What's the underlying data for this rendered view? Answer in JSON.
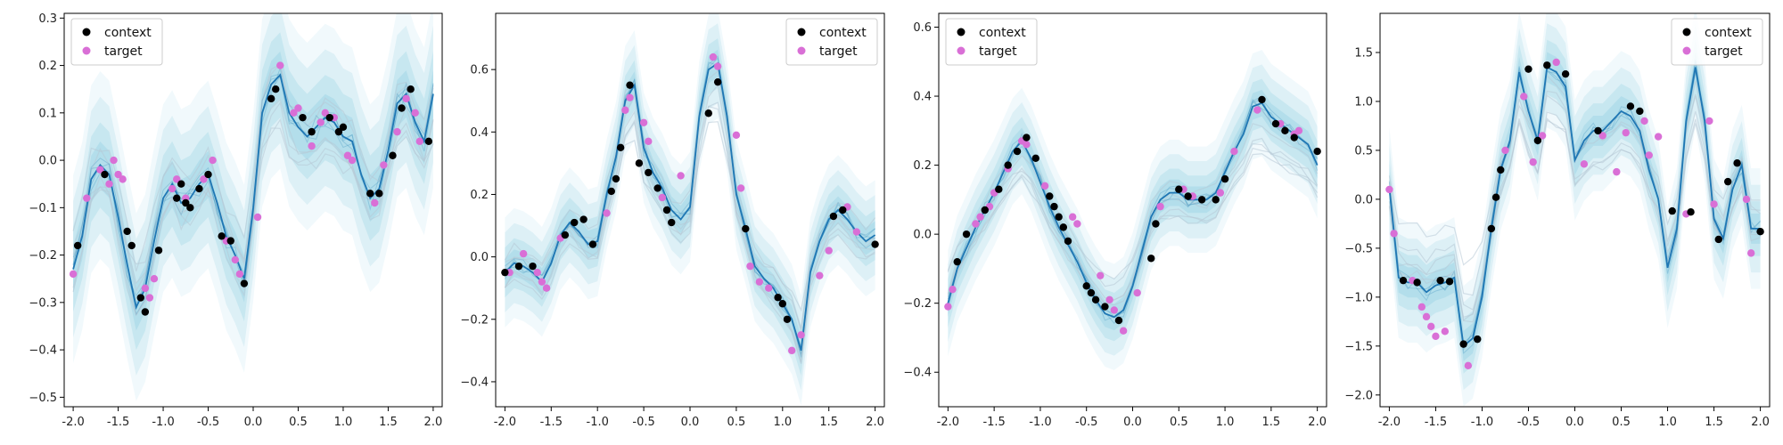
{
  "colors": {
    "context": "#000000",
    "target": "#d96fd6",
    "mean_line": "#1f77b4",
    "band": "#8fcfe3",
    "faint_sample": "#b7c9d6"
  },
  "legend": {
    "context_label": "context",
    "target_label": "target"
  },
  "chart_data": [
    {
      "type": "line",
      "title": "",
      "xlabel": "",
      "ylabel": "",
      "xlim": [
        -2.1,
        2.1
      ],
      "ylim": [
        -0.52,
        0.31
      ],
      "xticks": [
        "-2.0",
        "-1.5",
        "-1.0",
        "-0.5",
        "0.0",
        "0.5",
        "1.0",
        "1.5",
        "2.0"
      ],
      "xtick_values": [
        -2,
        -1.5,
        -1,
        -0.5,
        0,
        0.5,
        1,
        1.5,
        2
      ],
      "yticks": [
        "−0.5",
        "−0.4",
        "−0.3",
        "−0.2",
        "−0.1",
        "0.0",
        "0.1",
        "0.2",
        "0.3"
      ],
      "ytick_values": [
        -0.5,
        -0.4,
        -0.3,
        -0.2,
        -0.1,
        0,
        0.1,
        0.2,
        0.3
      ],
      "legend_position": "upper-left",
      "mean_x": [
        -2.0,
        -1.9,
        -1.8,
        -1.7,
        -1.6,
        -1.5,
        -1.4,
        -1.3,
        -1.2,
        -1.1,
        -1.0,
        -0.9,
        -0.8,
        -0.7,
        -0.6,
        -0.5,
        -0.4,
        -0.3,
        -0.2,
        -0.1,
        0.0,
        0.1,
        0.2,
        0.3,
        0.4,
        0.5,
        0.6,
        0.7,
        0.8,
        0.9,
        1.0,
        1.1,
        1.2,
        1.3,
        1.4,
        1.5,
        1.6,
        1.7,
        1.8,
        1.9,
        2.0
      ],
      "mean_y": [
        -0.23,
        -0.16,
        -0.04,
        -0.01,
        -0.03,
        -0.12,
        -0.22,
        -0.31,
        -0.27,
        -0.17,
        -0.08,
        -0.05,
        -0.09,
        -0.08,
        -0.05,
        -0.03,
        -0.09,
        -0.16,
        -0.2,
        -0.25,
        -0.1,
        0.1,
        0.16,
        0.18,
        0.1,
        0.07,
        0.05,
        0.07,
        0.09,
        0.08,
        0.05,
        0.04,
        -0.03,
        -0.08,
        -0.06,
        0.02,
        0.12,
        0.14,
        0.08,
        0.04,
        0.14
      ],
      "band_half_width": 0.09,
      "context": {
        "x": [
          -1.95,
          -1.65,
          -1.4,
          -1.35,
          -1.25,
          -1.2,
          -1.05,
          -0.85,
          -0.8,
          -0.75,
          -0.7,
          -0.6,
          -0.5,
          -0.35,
          -0.25,
          -0.1,
          0.2,
          0.25,
          0.55,
          0.65,
          0.85,
          0.95,
          1.0,
          1.3,
          1.4,
          1.55,
          1.65,
          1.75,
          1.95
        ],
        "y": [
          -0.18,
          -0.03,
          -0.15,
          -0.18,
          -0.29,
          -0.32,
          -0.19,
          -0.08,
          -0.05,
          -0.09,
          -0.1,
          -0.06,
          -0.03,
          -0.16,
          -0.17,
          -0.26,
          0.13,
          0.15,
          0.09,
          0.06,
          0.09,
          0.06,
          0.07,
          -0.07,
          -0.07,
          0.01,
          0.11,
          0.15,
          0.04
        ]
      },
      "target": {
        "x": [
          -2.0,
          -1.85,
          -1.7,
          -1.6,
          -1.55,
          -1.5,
          -1.45,
          -1.2,
          -1.15,
          -1.1,
          -0.9,
          -0.85,
          -0.75,
          -0.55,
          -0.45,
          -0.3,
          -0.2,
          -0.15,
          0.05,
          0.3,
          0.45,
          0.5,
          0.65,
          0.75,
          0.8,
          0.9,
          1.05,
          1.1,
          1.35,
          1.45,
          1.6,
          1.7,
          1.8,
          1.85
        ],
        "y": [
          -0.24,
          -0.08,
          -0.02,
          -0.05,
          0.0,
          -0.03,
          -0.04,
          -0.27,
          -0.29,
          -0.25,
          -0.06,
          -0.04,
          -0.08,
          -0.04,
          0.0,
          -0.17,
          -0.21,
          -0.24,
          -0.12,
          0.2,
          0.1,
          0.11,
          0.03,
          0.08,
          0.1,
          0.09,
          0.01,
          0.0,
          -0.09,
          -0.01,
          0.06,
          0.13,
          0.1,
          0.04
        ]
      }
    },
    {
      "type": "line",
      "title": "",
      "xlabel": "",
      "ylabel": "",
      "xlim": [
        -2.1,
        2.1
      ],
      "ylim": [
        -0.48,
        0.78
      ],
      "xticks": [
        "-2.0",
        "-1.5",
        "-1.0",
        "-0.5",
        "0.0",
        "0.5",
        "1.0",
        "1.5",
        "2.0"
      ],
      "xtick_values": [
        -2,
        -1.5,
        -1,
        -0.5,
        0,
        0.5,
        1,
        1.5,
        2
      ],
      "yticks": [
        "−0.4",
        "−0.2",
        "0.0",
        "0.2",
        "0.4",
        "0.6"
      ],
      "ytick_values": [
        -0.4,
        -0.2,
        0,
        0.2,
        0.4,
        0.6
      ],
      "legend_position": "upper-right",
      "mean_x": [
        -2.0,
        -1.9,
        -1.8,
        -1.7,
        -1.6,
        -1.5,
        -1.4,
        -1.3,
        -1.2,
        -1.1,
        -1.0,
        -0.9,
        -0.8,
        -0.7,
        -0.6,
        -0.5,
        -0.4,
        -0.3,
        -0.2,
        -0.1,
        0.0,
        0.1,
        0.2,
        0.3,
        0.4,
        0.5,
        0.6,
        0.7,
        0.8,
        0.9,
        1.0,
        1.1,
        1.2,
        1.3,
        1.4,
        1.5,
        1.6,
        1.7,
        1.8,
        1.9,
        2.0
      ],
      "mean_y": [
        -0.05,
        -0.02,
        -0.03,
        -0.05,
        -0.08,
        -0.02,
        0.07,
        0.11,
        0.08,
        0.04,
        0.05,
        0.2,
        0.32,
        0.5,
        0.55,
        0.35,
        0.27,
        0.22,
        0.15,
        0.12,
        0.16,
        0.45,
        0.6,
        0.62,
        0.45,
        0.2,
        0.09,
        -0.03,
        -0.07,
        -0.1,
        -0.15,
        -0.2,
        -0.3,
        -0.05,
        0.05,
        0.12,
        0.15,
        0.12,
        0.08,
        0.05,
        0.07
      ],
      "band_half_width": 0.08,
      "context": {
        "x": [
          -2.0,
          -1.85,
          -1.7,
          -1.35,
          -1.25,
          -1.15,
          -1.05,
          -0.85,
          -0.8,
          -0.75,
          -0.65,
          -0.55,
          -0.45,
          -0.35,
          -0.25,
          -0.2,
          0.2,
          0.3,
          0.6,
          0.95,
          1.0,
          1.05,
          1.55,
          1.65,
          2.0
        ],
        "y": [
          -0.05,
          -0.03,
          -0.03,
          0.07,
          0.11,
          0.12,
          0.04,
          0.21,
          0.25,
          0.35,
          0.55,
          0.3,
          0.27,
          0.22,
          0.15,
          0.11,
          0.46,
          0.56,
          0.09,
          -0.13,
          -0.15,
          -0.2,
          0.13,
          0.15,
          0.04
        ]
      },
      "target": {
        "x": [
          -1.95,
          -1.8,
          -1.65,
          -1.6,
          -1.55,
          -1.4,
          -0.9,
          -0.7,
          -0.65,
          -0.5,
          -0.45,
          -0.3,
          -0.1,
          0.25,
          0.3,
          0.5,
          0.55,
          0.65,
          0.75,
          0.85,
          1.1,
          1.2,
          1.4,
          1.5,
          1.7,
          1.8
        ],
        "y": [
          -0.05,
          0.01,
          -0.05,
          -0.08,
          -0.1,
          0.06,
          0.14,
          0.47,
          0.51,
          0.43,
          0.37,
          0.19,
          0.26,
          0.64,
          0.61,
          0.39,
          0.22,
          -0.03,
          -0.08,
          -0.1,
          -0.3,
          -0.25,
          -0.06,
          0.02,
          0.16,
          0.08
        ]
      }
    },
    {
      "type": "line",
      "title": "",
      "xlabel": "",
      "ylabel": "",
      "xlim": [
        -2.1,
        2.1
      ],
      "ylim": [
        -0.5,
        0.64
      ],
      "xticks": [
        "-2.0",
        "-1.5",
        "-1.0",
        "-0.5",
        "0.0",
        "0.5",
        "1.0",
        "1.5",
        "2.0"
      ],
      "xtick_values": [
        -2,
        -1.5,
        -1,
        -0.5,
        0,
        0.5,
        1,
        1.5,
        2
      ],
      "yticks": [
        "−0.4",
        "−0.2",
        "0.0",
        "0.2",
        "0.4",
        "0.6"
      ],
      "ytick_values": [
        -0.4,
        -0.2,
        0,
        0.2,
        0.4,
        0.6
      ],
      "legend_position": "upper-left",
      "mean_x": [
        -2.0,
        -1.9,
        -1.8,
        -1.7,
        -1.6,
        -1.5,
        -1.4,
        -1.3,
        -1.2,
        -1.1,
        -1.0,
        -0.9,
        -0.8,
        -0.7,
        -0.6,
        -0.5,
        -0.4,
        -0.3,
        -0.2,
        -0.1,
        0.0,
        0.1,
        0.2,
        0.3,
        0.4,
        0.5,
        0.6,
        0.7,
        0.8,
        0.9,
        1.0,
        1.1,
        1.2,
        1.3,
        1.4,
        1.5,
        1.6,
        1.7,
        1.8,
        1.9,
        2.0
      ],
      "mean_y": [
        -0.2,
        -0.1,
        -0.04,
        0.02,
        0.07,
        0.12,
        0.18,
        0.24,
        0.27,
        0.22,
        0.15,
        0.08,
        0.02,
        -0.03,
        -0.08,
        -0.14,
        -0.19,
        -0.23,
        -0.24,
        -0.22,
        -0.15,
        -0.05,
        0.05,
        0.1,
        0.12,
        0.12,
        0.1,
        0.1,
        0.1,
        0.12,
        0.18,
        0.24,
        0.29,
        0.37,
        0.38,
        0.34,
        0.32,
        0.3,
        0.28,
        0.26,
        0.2
      ],
      "band_half_width": 0.07,
      "context": {
        "x": [
          -1.9,
          -1.8,
          -1.6,
          -1.45,
          -1.35,
          -1.25,
          -1.15,
          -1.05,
          -0.9,
          -0.85,
          -0.8,
          -0.75,
          -0.7,
          -0.5,
          -0.45,
          -0.4,
          -0.3,
          -0.15,
          0.2,
          0.25,
          0.5,
          0.6,
          0.75,
          0.9,
          1.0,
          1.4,
          1.55,
          1.65,
          1.75,
          2.0
        ],
        "y": [
          -0.08,
          0.0,
          0.07,
          0.13,
          0.2,
          0.24,
          0.28,
          0.22,
          0.11,
          0.08,
          0.05,
          0.02,
          -0.02,
          -0.15,
          -0.17,
          -0.19,
          -0.21,
          -0.25,
          -0.07,
          0.03,
          0.13,
          0.11,
          0.1,
          0.1,
          0.16,
          0.39,
          0.32,
          0.3,
          0.28,
          0.24
        ]
      },
      "target": {
        "x": [
          -2.0,
          -1.95,
          -1.7,
          -1.65,
          -1.55,
          -1.5,
          -1.35,
          -1.2,
          -1.15,
          -0.95,
          -0.65,
          -0.6,
          -0.35,
          -0.25,
          -0.2,
          -0.1,
          0.05,
          0.3,
          0.55,
          0.65,
          0.95,
          1.1,
          1.35,
          1.6,
          1.75,
          1.8
        ],
        "y": [
          -0.21,
          -0.16,
          0.03,
          0.05,
          0.08,
          0.12,
          0.19,
          0.27,
          0.26,
          0.14,
          0.05,
          0.03,
          -0.12,
          -0.19,
          -0.22,
          -0.28,
          -0.17,
          0.08,
          0.13,
          0.11,
          0.12,
          0.24,
          0.36,
          0.32,
          0.29,
          0.3
        ]
      }
    },
    {
      "type": "line",
      "title": "",
      "xlabel": "",
      "ylabel": "",
      "xlim": [
        -2.1,
        2.1
      ],
      "ylim": [
        -2.12,
        1.9
      ],
      "xticks": [
        "-2.0",
        "-1.5",
        "-1.0",
        "-0.5",
        "0.0",
        "0.5",
        "1.0",
        "1.5",
        "2.0"
      ],
      "xtick_values": [
        -2,
        -1.5,
        -1,
        -0.5,
        0,
        0.5,
        1,
        1.5,
        2
      ],
      "yticks": [
        "−2.0",
        "−1.5",
        "−1.0",
        "−0.5",
        "0.0",
        "0.5",
        "1.0",
        "1.5"
      ],
      "ytick_values": [
        -2,
        -1.5,
        -1,
        -0.5,
        0,
        0.5,
        1,
        1.5
      ],
      "legend_position": "upper-right",
      "mean_x": [
        -2.0,
        -1.9,
        -1.8,
        -1.7,
        -1.6,
        -1.5,
        -1.4,
        -1.3,
        -1.2,
        -1.1,
        -1.0,
        -0.9,
        -0.8,
        -0.7,
        -0.6,
        -0.5,
        -0.4,
        -0.3,
        -0.2,
        -0.1,
        0.0,
        0.1,
        0.2,
        0.3,
        0.4,
        0.5,
        0.6,
        0.7,
        0.8,
        0.9,
        1.0,
        1.1,
        1.2,
        1.3,
        1.4,
        1.5,
        1.6,
        1.7,
        1.8,
        1.9,
        2.0
      ],
      "mean_y": [
        0.12,
        -0.8,
        -0.85,
        -0.85,
        -0.95,
        -0.88,
        -0.85,
        -0.8,
        -1.5,
        -1.42,
        -1.0,
        -0.3,
        0.3,
        0.6,
        1.3,
        0.9,
        0.6,
        1.35,
        1.3,
        1.15,
        0.4,
        0.6,
        0.7,
        0.7,
        0.8,
        0.9,
        0.85,
        0.7,
        0.3,
        0.0,
        -0.7,
        -0.3,
        0.8,
        1.35,
        0.8,
        -0.2,
        -0.4,
        0.1,
        0.35,
        -0.3,
        -0.3
      ],
      "band_half_width": 0.28,
      "context": {
        "x": [
          -1.85,
          -1.7,
          -1.45,
          -1.35,
          -1.2,
          -1.05,
          -0.9,
          -0.85,
          -0.8,
          -0.5,
          -0.4,
          -0.3,
          -0.1,
          0.25,
          0.6,
          0.7,
          1.05,
          1.25,
          1.55,
          1.65,
          1.75,
          2.0
        ],
        "y": [
          -0.83,
          -0.85,
          -0.83,
          -0.84,
          -1.48,
          -1.43,
          -0.3,
          0.02,
          0.3,
          1.33,
          0.6,
          1.37,
          1.28,
          0.7,
          0.95,
          0.9,
          -0.12,
          -0.13,
          -0.41,
          0.18,
          0.37,
          -0.33
        ]
      },
      "target": {
        "x": [
          -2.0,
          -1.95,
          -1.75,
          -1.65,
          -1.6,
          -1.55,
          -1.5,
          -1.4,
          -1.15,
          -0.75,
          -0.55,
          -0.45,
          -0.35,
          -0.2,
          0.1,
          0.3,
          0.45,
          0.55,
          0.75,
          0.8,
          0.9,
          1.2,
          1.45,
          1.5,
          1.85,
          1.9
        ],
        "y": [
          0.1,
          -0.35,
          -0.83,
          -1.1,
          -1.2,
          -1.3,
          -1.4,
          -1.35,
          -1.7,
          0.5,
          1.05,
          0.38,
          0.65,
          1.4,
          0.36,
          0.65,
          0.28,
          0.68,
          0.8,
          0.45,
          0.64,
          -0.15,
          0.8,
          -0.05,
          0.0,
          -0.55
        ]
      }
    }
  ]
}
